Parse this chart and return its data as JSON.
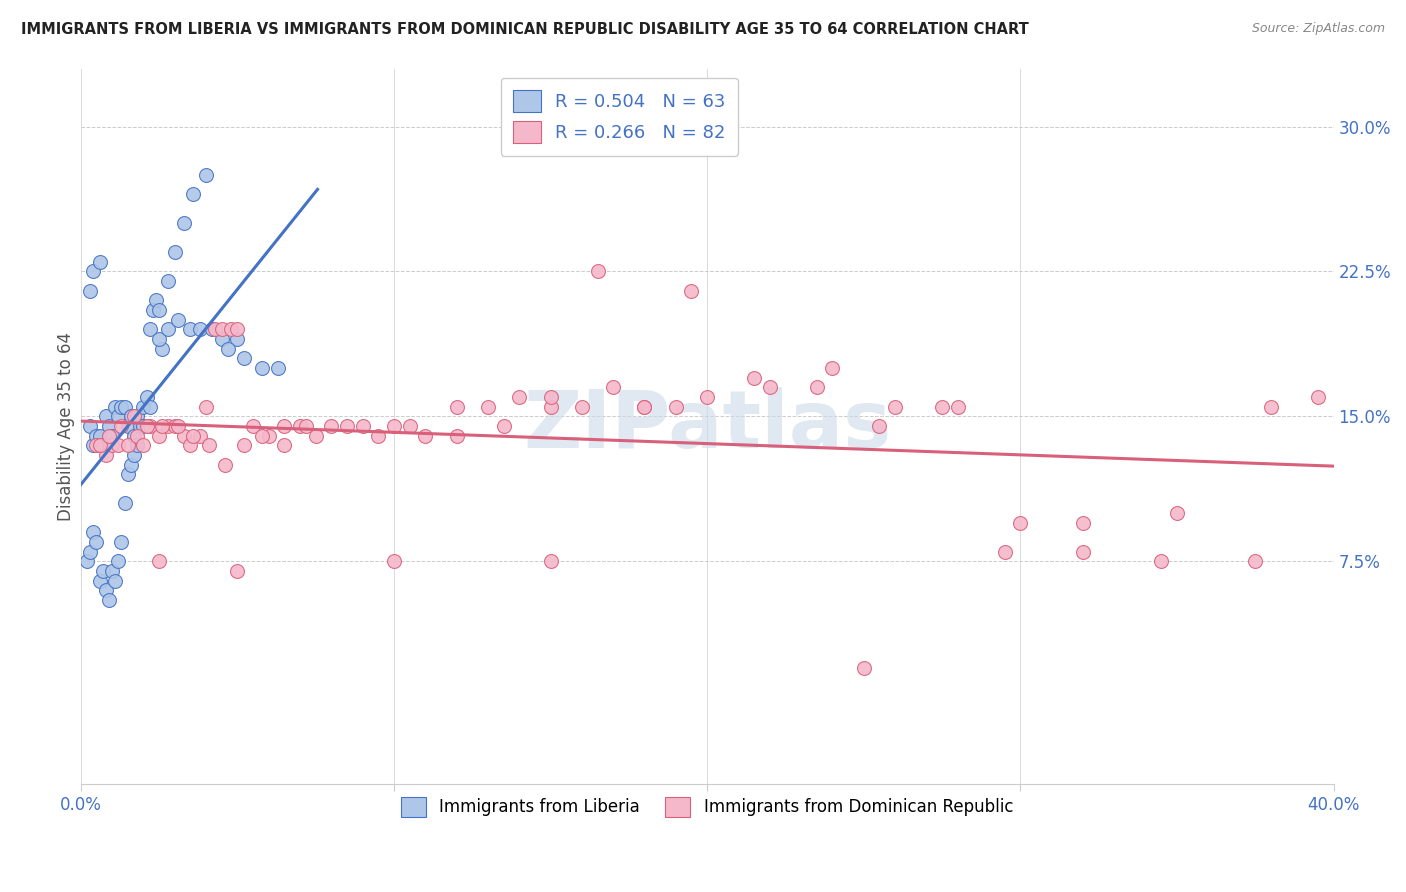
{
  "title": "IMMIGRANTS FROM LIBERIA VS IMMIGRANTS FROM DOMINICAN REPUBLIC DISABILITY AGE 35 TO 64 CORRELATION CHART",
  "source": "Source: ZipAtlas.com",
  "ylabel": "Disability Age 35 to 64",
  "yticks": [
    0.075,
    0.15,
    0.225,
    0.3
  ],
  "ytick_labels": [
    "7.5%",
    "15.0%",
    "22.5%",
    "30.0%"
  ],
  "xlim": [
    0.0,
    0.4
  ],
  "ylim": [
    -0.04,
    0.33
  ],
  "legend_r1": "R = 0.504",
  "legend_n1": "N = 63",
  "legend_r2": "R = 0.266",
  "legend_n2": "N = 82",
  "color_liberia": "#aec6e8",
  "color_dr": "#f5b8cb",
  "line_color_liberia": "#4472c4",
  "line_color_dr": "#d9607a",
  "watermark": "ZIPatlas",
  "liberia_x": [
    0.003,
    0.004,
    0.005,
    0.006,
    0.007,
    0.008,
    0.009,
    0.01,
    0.011,
    0.012,
    0.013,
    0.014,
    0.015,
    0.016,
    0.017,
    0.018,
    0.019,
    0.02,
    0.021,
    0.022,
    0.023,
    0.024,
    0.025,
    0.026,
    0.028,
    0.03,
    0.033,
    0.036,
    0.04,
    0.045,
    0.05,
    0.002,
    0.003,
    0.004,
    0.005,
    0.006,
    0.007,
    0.008,
    0.009,
    0.01,
    0.011,
    0.012,
    0.013,
    0.014,
    0.015,
    0.016,
    0.017,
    0.018,
    0.02,
    0.022,
    0.025,
    0.028,
    0.031,
    0.035,
    0.038,
    0.042,
    0.047,
    0.052,
    0.058,
    0.063,
    0.003,
    0.004,
    0.006
  ],
  "liberia_y": [
    0.145,
    0.135,
    0.14,
    0.14,
    0.135,
    0.15,
    0.145,
    0.14,
    0.155,
    0.15,
    0.155,
    0.155,
    0.145,
    0.15,
    0.14,
    0.15,
    0.145,
    0.155,
    0.16,
    0.195,
    0.205,
    0.21,
    0.205,
    0.185,
    0.22,
    0.235,
    0.25,
    0.265,
    0.275,
    0.19,
    0.19,
    0.075,
    0.08,
    0.09,
    0.085,
    0.065,
    0.07,
    0.06,
    0.055,
    0.07,
    0.065,
    0.075,
    0.085,
    0.105,
    0.12,
    0.125,
    0.13,
    0.135,
    0.145,
    0.155,
    0.19,
    0.195,
    0.2,
    0.195,
    0.195,
    0.195,
    0.185,
    0.18,
    0.175,
    0.175,
    0.215,
    0.225,
    0.23
  ],
  "dr_x": [
    0.005,
    0.008,
    0.01,
    0.012,
    0.015,
    0.018,
    0.02,
    0.022,
    0.025,
    0.028,
    0.03,
    0.033,
    0.035,
    0.038,
    0.04,
    0.043,
    0.045,
    0.048,
    0.05,
    0.055,
    0.06,
    0.065,
    0.07,
    0.075,
    0.08,
    0.09,
    0.1,
    0.11,
    0.12,
    0.13,
    0.14,
    0.15,
    0.16,
    0.17,
    0.18,
    0.19,
    0.2,
    0.22,
    0.24,
    0.26,
    0.28,
    0.3,
    0.32,
    0.35,
    0.38,
    0.006,
    0.009,
    0.013,
    0.017,
    0.021,
    0.026,
    0.031,
    0.036,
    0.041,
    0.046,
    0.052,
    0.058,
    0.065,
    0.072,
    0.085,
    0.095,
    0.105,
    0.12,
    0.135,
    0.15,
    0.165,
    0.18,
    0.195,
    0.215,
    0.235,
    0.255,
    0.275,
    0.295,
    0.32,
    0.345,
    0.375,
    0.395,
    0.025,
    0.05,
    0.1,
    0.15,
    0.25
  ],
  "dr_y": [
    0.135,
    0.13,
    0.135,
    0.135,
    0.135,
    0.14,
    0.135,
    0.145,
    0.14,
    0.145,
    0.145,
    0.14,
    0.135,
    0.14,
    0.155,
    0.195,
    0.195,
    0.195,
    0.195,
    0.145,
    0.14,
    0.135,
    0.145,
    0.14,
    0.145,
    0.145,
    0.145,
    0.14,
    0.14,
    0.155,
    0.16,
    0.155,
    0.155,
    0.165,
    0.155,
    0.155,
    0.16,
    0.165,
    0.175,
    0.155,
    0.155,
    0.095,
    0.095,
    0.1,
    0.155,
    0.135,
    0.14,
    0.145,
    0.15,
    0.145,
    0.145,
    0.145,
    0.14,
    0.135,
    0.125,
    0.135,
    0.14,
    0.145,
    0.145,
    0.145,
    0.14,
    0.145,
    0.155,
    0.145,
    0.16,
    0.225,
    0.155,
    0.215,
    0.17,
    0.165,
    0.145,
    0.155,
    0.08,
    0.08,
    0.075,
    0.075,
    0.16,
    0.075,
    0.07,
    0.075,
    0.075,
    0.02
  ]
}
